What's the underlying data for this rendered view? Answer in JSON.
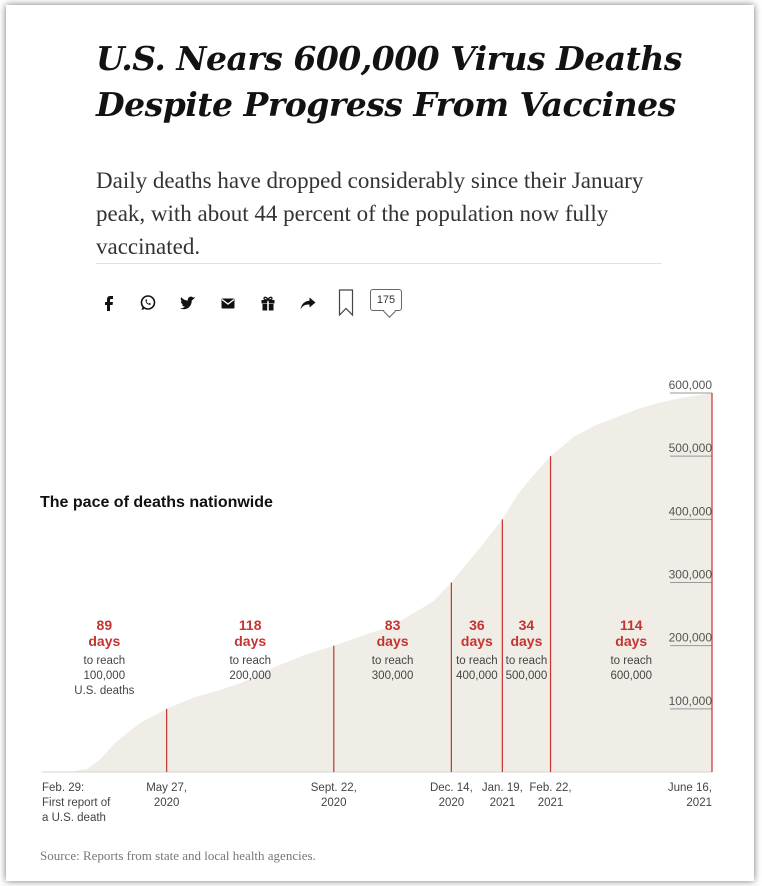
{
  "article": {
    "headline": "U.S. Nears 600,000 Virus Deaths Despite Progress From Vaccines",
    "subhead": "Daily deaths have dropped considerably since their January peak, with about 44 percent of the population now fully vaccinated.",
    "comment_count": "175",
    "source": "Source: Reports from state and local health agencies."
  },
  "share_icons": [
    "facebook-icon",
    "whatsapp-icon",
    "twitter-icon",
    "email-icon",
    "gift-icon",
    "share-arrow-icon",
    "bookmark-icon"
  ],
  "colors": {
    "area": "#efede6",
    "milestone": "#c43430",
    "text": "#333333"
  },
  "chart_data": {
    "type": "area",
    "title": "The pace of deaths nationwide",
    "x_start": "2020-02-29",
    "x_end": "2021-06-16",
    "y_ticks": [
      100000,
      200000,
      300000,
      400000,
      500000,
      600000
    ],
    "y_tick_labels": [
      "100,000",
      "200,000",
      "300,000",
      "400,000",
      "500,000",
      "600,000"
    ],
    "ylim": [
      0,
      600000
    ],
    "series": [
      {
        "points": [
          [
            "2020-02-29",
            0
          ],
          [
            "2020-03-20",
            200
          ],
          [
            "2020-04-01",
            5000
          ],
          [
            "2020-04-10",
            20000
          ],
          [
            "2020-04-20",
            45000
          ],
          [
            "2020-05-01",
            65000
          ],
          [
            "2020-05-10",
            80000
          ],
          [
            "2020-05-27",
            100000
          ],
          [
            "2020-06-15",
            118000
          ],
          [
            "2020-07-01",
            128000
          ],
          [
            "2020-07-20",
            142000
          ],
          [
            "2020-08-10",
            165000
          ],
          [
            "2020-09-01",
            185000
          ],
          [
            "2020-09-22",
            200000
          ],
          [
            "2020-10-15",
            218000
          ],
          [
            "2020-11-01",
            230000
          ],
          [
            "2020-11-20",
            255000
          ],
          [
            "2020-12-01",
            270000
          ],
          [
            "2020-12-14",
            300000
          ],
          [
            "2020-12-25",
            330000
          ],
          [
            "2021-01-05",
            360000
          ],
          [
            "2021-01-19",
            400000
          ],
          [
            "2021-01-30",
            440000
          ],
          [
            "2021-02-10",
            470000
          ],
          [
            "2021-02-22",
            500000
          ],
          [
            "2021-03-10",
            530000
          ],
          [
            "2021-03-25",
            548000
          ],
          [
            "2021-04-10",
            562000
          ],
          [
            "2021-04-25",
            575000
          ],
          [
            "2021-05-10",
            585000
          ],
          [
            "2021-05-25",
            592000
          ],
          [
            "2021-06-16",
            600000
          ]
        ]
      }
    ],
    "milestones": [
      {
        "date": "2020-05-27",
        "deaths": 100000,
        "date_line1": "May 27,",
        "date_line2": "2020"
      },
      {
        "date": "2020-09-22",
        "deaths": 200000,
        "date_line1": "Sept. 22,",
        "date_line2": "2020"
      },
      {
        "date": "2020-12-14",
        "deaths": 300000,
        "date_line1": "Dec. 14,",
        "date_line2": "2020"
      },
      {
        "date": "2021-01-19",
        "deaths": 400000,
        "date_line1": "Jan. 19,",
        "date_line2": "2021"
      },
      {
        "date": "2021-02-22",
        "deaths": 500000,
        "date_line1": "Feb. 22,",
        "date_line2": "2021"
      },
      {
        "date": "2021-06-16",
        "deaths": 600000,
        "date_line1": "June 16,",
        "date_line2": "2021"
      }
    ],
    "start_label": [
      "Feb. 29:",
      "First report of",
      "a U.S. death"
    ],
    "intervals": [
      {
        "days": "89",
        "unit": "days",
        "lines": [
          "to reach",
          "100,000",
          "U.S. deaths"
        ]
      },
      {
        "days": "118",
        "unit": "days",
        "lines": [
          "to reach",
          "200,000"
        ]
      },
      {
        "days": "83",
        "unit": "days",
        "lines": [
          "to reach",
          "300,000"
        ]
      },
      {
        "days": "36",
        "unit": "days",
        "lines": [
          "to reach",
          "400,000"
        ]
      },
      {
        "days": "34",
        "unit": "days",
        "lines": [
          "to reach",
          "500,000"
        ]
      },
      {
        "days": "114",
        "unit": "days",
        "lines": [
          "to reach",
          "600,000"
        ]
      }
    ]
  }
}
